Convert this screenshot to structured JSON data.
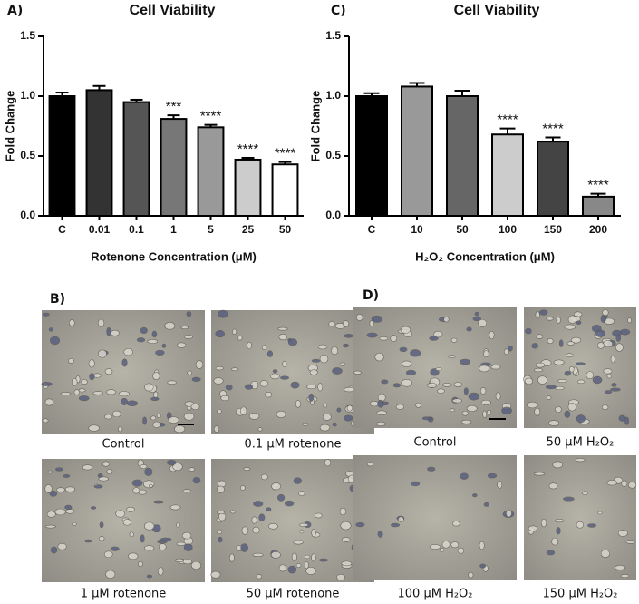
{
  "chart_data": [
    {
      "type": "bar",
      "panel": "A)",
      "title": "Cell Viability",
      "y_label": "Fold Change",
      "x_label": "Rotenone Concentration (μM)",
      "categories": [
        "C",
        "0.01",
        "0.1",
        "1",
        "5",
        "25",
        "50"
      ],
      "values": [
        1.0,
        1.05,
        0.95,
        0.81,
        0.74,
        0.47,
        0.43
      ],
      "errors": [
        0.03,
        0.035,
        0.02,
        0.03,
        0.02,
        0.015,
        0.02
      ],
      "annotations": [
        null,
        null,
        null,
        "***",
        "****",
        "****",
        "****"
      ],
      "colors": [
        "#000000",
        "#333333",
        "#555555",
        "#777777",
        "#999999",
        "#cccccc",
        "#ffffff"
      ],
      "ylim": [
        0,
        1.5
      ],
      "yticks": [
        {
          "value": 0,
          "label": "0.0"
        },
        0.5,
        {
          "value": 1,
          "label": "1.0"
        },
        1.5
      ]
    },
    {
      "type": "bar",
      "panel": "C)",
      "title": "Cell Viability",
      "y_label": "Fold Change",
      "x_label": "H₂O₂ Concentration (μM)",
      "categories": [
        "C",
        "10",
        "50",
        "100",
        "150",
        "200"
      ],
      "values": [
        1.0,
        1.08,
        1.0,
        0.68,
        0.62,
        0.16
      ],
      "errors": [
        0.025,
        0.03,
        0.045,
        0.05,
        0.035,
        0.025
      ],
      "annotations": [
        null,
        null,
        null,
        "****",
        "****",
        "****"
      ],
      "colors": [
        "#000000",
        "#999999",
        "#666666",
        "#cccccc",
        "#444444",
        "#888888"
      ],
      "ylim": [
        0,
        1.5
      ],
      "yticks": [
        {
          "value": 0,
          "label": "0.0"
        },
        0.5,
        {
          "value": 1,
          "label": "1.0"
        },
        1.5
      ]
    }
  ],
  "panels": [
    {
      "label": "B)",
      "captions": [
        "Control",
        "0.1 μM rotenone",
        "1 μM rotenone",
        "50 μM rotenone"
      ]
    },
    {
      "label": "D)",
      "captions": [
        "Control",
        "50 μM H₂O₂",
        "100 μM H₂O₂",
        "150 μM H₂O₂"
      ]
    }
  ]
}
